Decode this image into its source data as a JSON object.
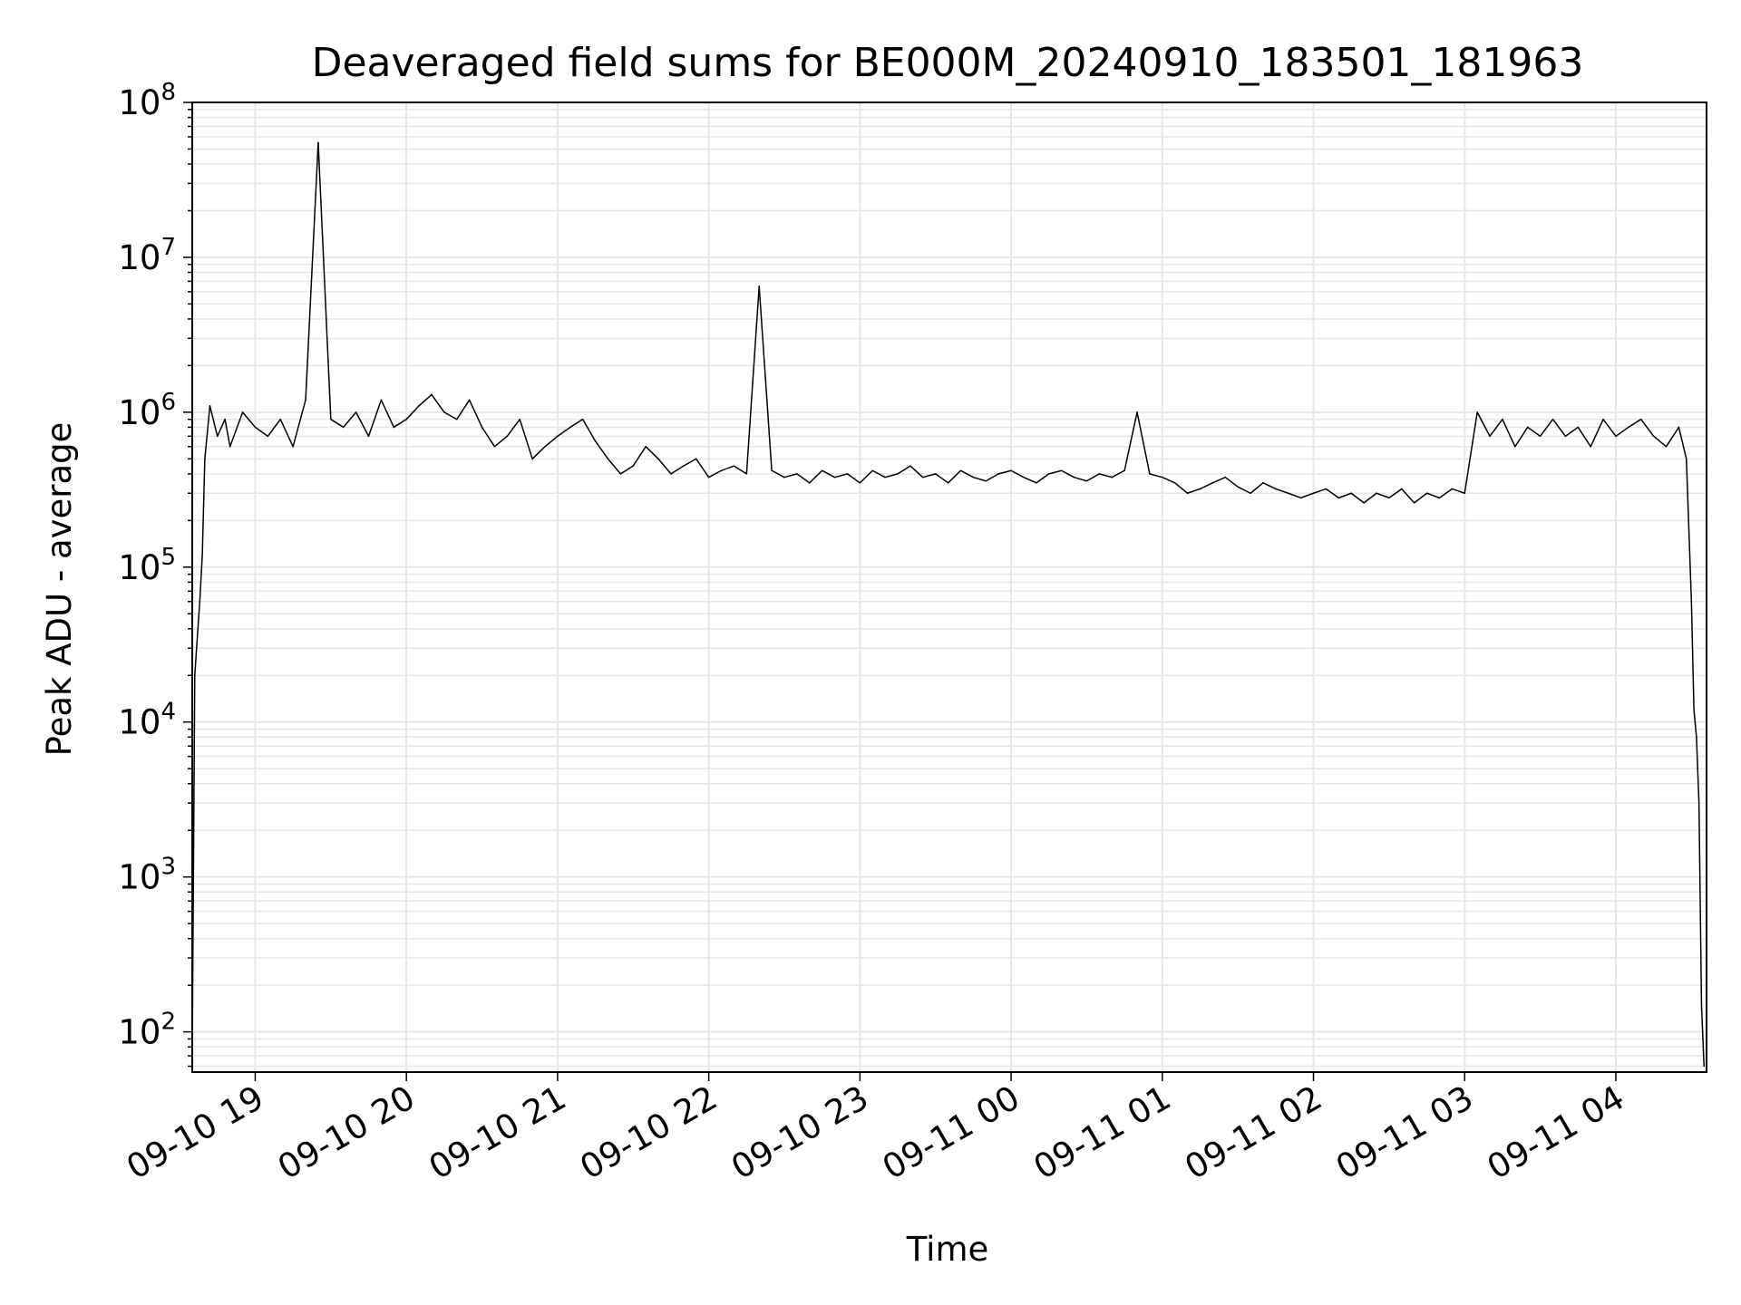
{
  "chart_data": {
    "type": "line",
    "title": "Deaveraged field sums for BE000M_20240910_183501_181963",
    "xlabel": "Time",
    "ylabel": "Peak ADU - average",
    "yscale": "log",
    "ylim": [
      55,
      100000000
    ],
    "xlim": [
      "2024-09-10 18:35",
      "2024-09-11 04:36"
    ],
    "grid": true,
    "line_color": "#000000",
    "grid_color": "#e6e6e6",
    "x_ticks": [
      {
        "label": "09-10 19",
        "time": "2024-09-10 19:00"
      },
      {
        "label": "09-10 20",
        "time": "2024-09-10 20:00"
      },
      {
        "label": "09-10 21",
        "time": "2024-09-10 21:00"
      },
      {
        "label": "09-10 22",
        "time": "2024-09-10 22:00"
      },
      {
        "label": "09-10 23",
        "time": "2024-09-10 23:00"
      },
      {
        "label": "09-11 00",
        "time": "2024-09-11 00:00"
      },
      {
        "label": "09-11 01",
        "time": "2024-09-11 01:00"
      },
      {
        "label": "09-11 02",
        "time": "2024-09-11 02:00"
      },
      {
        "label": "09-11 03",
        "time": "2024-09-11 03:00"
      },
      {
        "label": "09-11 04",
        "time": "2024-09-11 04:00"
      }
    ],
    "y_ticks": [
      {
        "base": "10",
        "exp": "2",
        "value": 100
      },
      {
        "base": "10",
        "exp": "3",
        "value": 1000
      },
      {
        "base": "10",
        "exp": "4",
        "value": 10000
      },
      {
        "base": "10",
        "exp": "5",
        "value": 100000
      },
      {
        "base": "10",
        "exp": "6",
        "value": 1000000
      },
      {
        "base": "10",
        "exp": "7",
        "value": 10000000
      },
      {
        "base": "10",
        "exp": "8",
        "value": 100000000
      }
    ],
    "series": [
      {
        "x": [
          "2024-09-10 18:35",
          "2024-09-10 18:36",
          "2024-09-10 18:37",
          "2024-09-10 18:38",
          "2024-09-10 18:39",
          "2024-09-10 18:40",
          "2024-09-10 18:42",
          "2024-09-10 18:45",
          "2024-09-10 18:48",
          "2024-09-10 18:50",
          "2024-09-10 18:55",
          "2024-09-10 19:00",
          "2024-09-10 19:05",
          "2024-09-10 19:10",
          "2024-09-10 19:15",
          "2024-09-10 19:20",
          "2024-09-10 19:25",
          "2024-09-10 19:30",
          "2024-09-10 19:35",
          "2024-09-10 19:40",
          "2024-09-10 19:45",
          "2024-09-10 19:50",
          "2024-09-10 19:55",
          "2024-09-10 20:00",
          "2024-09-10 20:05",
          "2024-09-10 20:10",
          "2024-09-10 20:15",
          "2024-09-10 20:20",
          "2024-09-10 20:25",
          "2024-09-10 20:30",
          "2024-09-10 20:35",
          "2024-09-10 20:40",
          "2024-09-10 20:45",
          "2024-09-10 20:50",
          "2024-09-10 20:55",
          "2024-09-10 21:00",
          "2024-09-10 21:05",
          "2024-09-10 21:10",
          "2024-09-10 21:15",
          "2024-09-10 21:20",
          "2024-09-10 21:25",
          "2024-09-10 21:30",
          "2024-09-10 21:35",
          "2024-09-10 21:40",
          "2024-09-10 21:45",
          "2024-09-10 21:50",
          "2024-09-10 21:55",
          "2024-09-10 22:00",
          "2024-09-10 22:05",
          "2024-09-10 22:10",
          "2024-09-10 22:15",
          "2024-09-10 22:20",
          "2024-09-10 22:25",
          "2024-09-10 22:30",
          "2024-09-10 22:35",
          "2024-09-10 22:40",
          "2024-09-10 22:45",
          "2024-09-10 22:50",
          "2024-09-10 22:55",
          "2024-09-10 23:00",
          "2024-09-10 23:05",
          "2024-09-10 23:10",
          "2024-09-10 23:15",
          "2024-09-10 23:20",
          "2024-09-10 23:25",
          "2024-09-10 23:30",
          "2024-09-10 23:35",
          "2024-09-10 23:40",
          "2024-09-10 23:45",
          "2024-09-10 23:50",
          "2024-09-10 23:55",
          "2024-09-11 00:00",
          "2024-09-11 00:05",
          "2024-09-11 00:10",
          "2024-09-11 00:15",
          "2024-09-11 00:20",
          "2024-09-11 00:25",
          "2024-09-11 00:30",
          "2024-09-11 00:35",
          "2024-09-11 00:40",
          "2024-09-11 00:45",
          "2024-09-11 00:50",
          "2024-09-11 00:55",
          "2024-09-11 01:00",
          "2024-09-11 01:05",
          "2024-09-11 01:10",
          "2024-09-11 01:15",
          "2024-09-11 01:20",
          "2024-09-11 01:25",
          "2024-09-11 01:30",
          "2024-09-11 01:35",
          "2024-09-11 01:40",
          "2024-09-11 01:45",
          "2024-09-11 01:50",
          "2024-09-11 01:55",
          "2024-09-11 02:00",
          "2024-09-11 02:05",
          "2024-09-11 02:10",
          "2024-09-11 02:15",
          "2024-09-11 02:20",
          "2024-09-11 02:25",
          "2024-09-11 02:30",
          "2024-09-11 02:35",
          "2024-09-11 02:40",
          "2024-09-11 02:45",
          "2024-09-11 02:50",
          "2024-09-11 02:55",
          "2024-09-11 03:00",
          "2024-09-11 03:05",
          "2024-09-11 03:10",
          "2024-09-11 03:15",
          "2024-09-11 03:20",
          "2024-09-11 03:25",
          "2024-09-11 03:30",
          "2024-09-11 03:35",
          "2024-09-11 03:40",
          "2024-09-11 03:45",
          "2024-09-11 03:50",
          "2024-09-11 03:55",
          "2024-09-11 04:00",
          "2024-09-11 04:05",
          "2024-09-11 04:10",
          "2024-09-11 04:15",
          "2024-09-11 04:20",
          "2024-09-11 04:25",
          "2024-09-11 04:28",
          "2024-09-11 04:30",
          "2024-09-11 04:31",
          "2024-09-11 04:32",
          "2024-09-11 04:33",
          "2024-09-11 04:34",
          "2024-09-11 04:35"
        ],
        "y": [
          70,
          20000,
          35000,
          60000,
          120000,
          500000,
          1100000,
          700000,
          900000,
          600000,
          1000000,
          800000,
          700000,
          900000,
          600000,
          1200000,
          55000000,
          900000,
          800000,
          1000000,
          700000,
          1200000,
          800000,
          900000,
          1100000,
          1300000,
          1000000,
          900000,
          1200000,
          800000,
          600000,
          700000,
          900000,
          500000,
          600000,
          700000,
          800000,
          900000,
          650000,
          500000,
          400000,
          450000,
          600000,
          500000,
          400000,
          450000,
          500000,
          380000,
          420000,
          450000,
          400000,
          6500000,
          420000,
          380000,
          400000,
          350000,
          420000,
          380000,
          400000,
          350000,
          420000,
          380000,
          400000,
          450000,
          380000,
          400000,
          350000,
          420000,
          380000,
          360000,
          400000,
          420000,
          380000,
          350000,
          400000,
          420000,
          380000,
          360000,
          400000,
          380000,
          420000,
          1000000,
          400000,
          380000,
          350000,
          300000,
          320000,
          350000,
          380000,
          330000,
          300000,
          350000,
          320000,
          300000,
          280000,
          300000,
          320000,
          280000,
          300000,
          260000,
          300000,
          280000,
          320000,
          260000,
          300000,
          280000,
          320000,
          300000,
          1000000,
          700000,
          900000,
          600000,
          800000,
          700000,
          900000,
          700000,
          800000,
          600000,
          900000,
          700000,
          800000,
          900000,
          700000,
          600000,
          800000,
          500000,
          60000,
          12000,
          8000,
          3000,
          150,
          60
        ]
      }
    ]
  }
}
